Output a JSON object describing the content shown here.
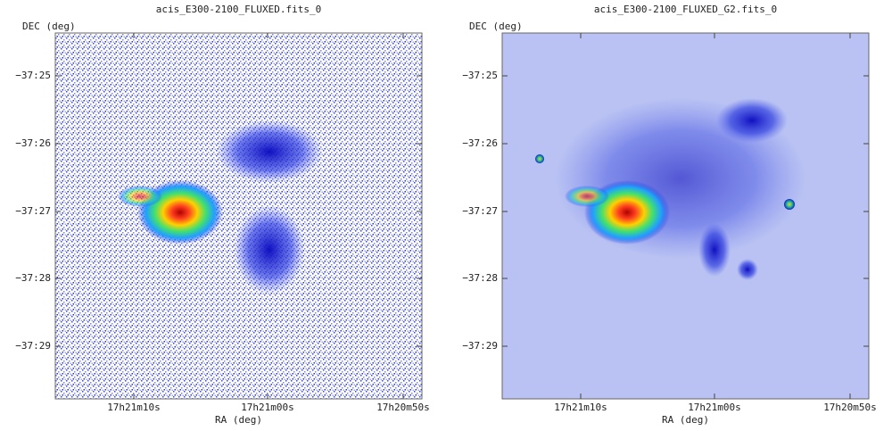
{
  "panels": [
    {
      "title": "acis_E300-2100_FLUXED.fits_0",
      "y_label": "DEC (deg)",
      "x_label": "RA (deg)",
      "y_ticks": [
        "−37:25",
        "−37:26",
        "−37:27",
        "−37:28",
        "−37:29"
      ],
      "x_ticks": [
        "17h21m10s",
        "17h21m00s",
        "17h20m50s"
      ]
    },
    {
      "title": "acis_E300-2100_FLUXED_G2.fits_0",
      "y_label": "DEC (deg)",
      "x_label": "RA (deg)",
      "y_ticks": [
        "−37:25",
        "−37:26",
        "−37:27",
        "−37:28",
        "−37:29"
      ],
      "x_ticks": [
        "17h21m10s",
        "17h21m00s",
        "17h20m50s"
      ]
    }
  ]
}
